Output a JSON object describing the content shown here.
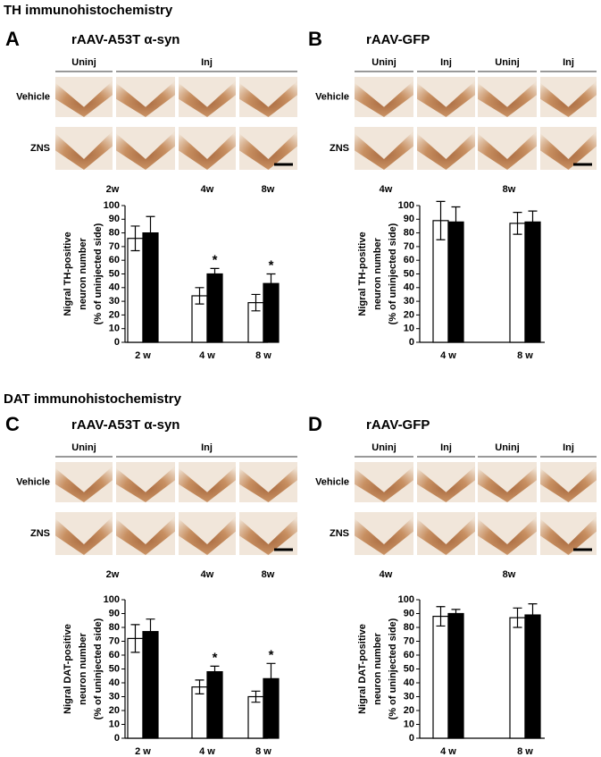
{
  "sections": [
    {
      "title": "TH immunohistochemistry"
    },
    {
      "title": "DAT immunohistochemistry"
    }
  ],
  "panels": [
    {
      "letter": "A",
      "title": "rAAV-A53T α-syn",
      "headers": [
        "Uninj",
        "Inj"
      ],
      "rows": [
        "Vehicle",
        "ZNS"
      ],
      "times": [
        "2w",
        "4w",
        "8w"
      ]
    },
    {
      "letter": "B",
      "title": "rAAV-GFP",
      "headers": [
        "Uninj",
        "Inj",
        "Uninj",
        "Inj"
      ],
      "rows": [
        "Vehicle",
        "ZNS"
      ],
      "times": [
        "4w",
        "8w"
      ]
    },
    {
      "letter": "C",
      "title": "rAAV-A53T α-syn",
      "headers": [
        "Uninj",
        "Inj"
      ],
      "rows": [
        "Vehicle",
        "ZNS"
      ],
      "times": [
        "2w",
        "4w",
        "8w"
      ]
    },
    {
      "letter": "D",
      "title": "rAAV-GFP",
      "headers": [
        "Uninj",
        "Inj",
        "Uninj",
        "Inj"
      ],
      "rows": [
        "Vehicle",
        "ZNS"
      ],
      "times": [
        "4w",
        "8w"
      ]
    }
  ],
  "chart_data": [
    {
      "type": "bar",
      "ylabel": [
        "Nigral TH-positive",
        "neuron number",
        "(% of uninjected side)"
      ],
      "categories": [
        "2 w",
        "4 w",
        "8 w"
      ],
      "series": [
        {
          "color": "#ffffff",
          "values": [
            76,
            34,
            29
          ],
          "errors": [
            9,
            6,
            6
          ]
        },
        {
          "color": "#000000",
          "values": [
            80,
            50,
            43
          ],
          "errors": [
            12,
            4,
            7
          ],
          "labels": [
            null,
            "*",
            "*"
          ]
        }
      ],
      "ylim": [
        0,
        100
      ],
      "yticks": [
        0,
        10,
        20,
        30,
        40,
        50,
        60,
        70,
        80,
        90,
        100
      ]
    },
    {
      "type": "bar",
      "ylabel": [
        "Nigral TH-positive",
        "neuron number",
        "(% of uninjected side)"
      ],
      "categories": [
        "4 w",
        "8 w"
      ],
      "series": [
        {
          "color": "#ffffff",
          "values": [
            89,
            87
          ],
          "errors": [
            14,
            8
          ]
        },
        {
          "color": "#000000",
          "values": [
            88,
            88
          ],
          "errors": [
            11,
            8
          ]
        }
      ],
      "ylim": [
        0,
        100
      ],
      "yticks": [
        0,
        10,
        20,
        30,
        40,
        50,
        60,
        70,
        80,
        90,
        100
      ]
    },
    {
      "type": "bar",
      "ylabel": [
        "Nigral DAT-positive",
        "neuron number",
        "(% of uninjected side)"
      ],
      "categories": [
        "2 w",
        "4 w",
        "8 w"
      ],
      "series": [
        {
          "color": "#ffffff",
          "values": [
            72,
            37,
            30
          ],
          "errors": [
            10,
            5,
            4
          ]
        },
        {
          "color": "#000000",
          "values": [
            77,
            48,
            43
          ],
          "errors": [
            9,
            4,
            11
          ],
          "labels": [
            null,
            "*",
            "*"
          ]
        }
      ],
      "ylim": [
        0,
        100
      ],
      "yticks": [
        0,
        10,
        20,
        30,
        40,
        50,
        60,
        70,
        80,
        90,
        100
      ]
    },
    {
      "type": "bar",
      "ylabel": [
        "Nigral DAT-positive",
        "neuron number",
        "(% of uninjected side)"
      ],
      "categories": [
        "4 w",
        "8 w"
      ],
      "series": [
        {
          "color": "#ffffff",
          "values": [
            88,
            87
          ],
          "errors": [
            7,
            7
          ]
        },
        {
          "color": "#000000",
          "values": [
            90,
            89
          ],
          "errors": [
            3,
            8
          ]
        }
      ],
      "ylim": [
        0,
        100
      ],
      "yticks": [
        0,
        10,
        20,
        30,
        40,
        50,
        60,
        70,
        80,
        90,
        100
      ]
    }
  ]
}
